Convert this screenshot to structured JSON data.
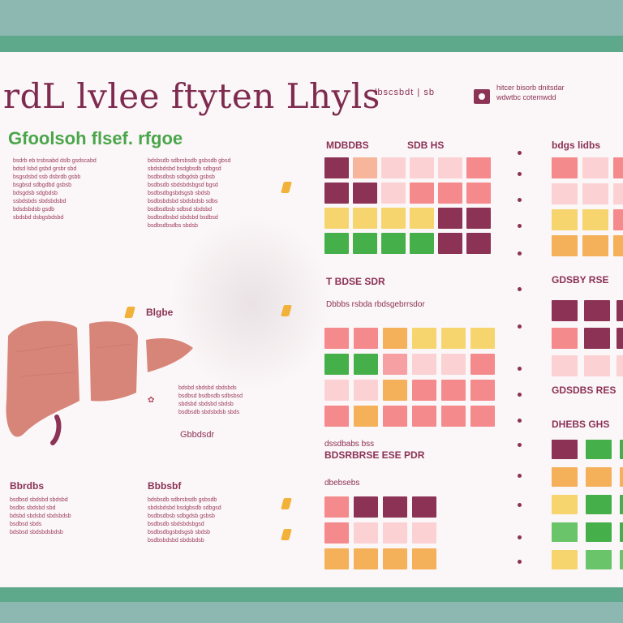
{
  "header": {
    "title": "rdL lvlee ftyten Lhyls",
    "title_meta": "lbscsbdt | sb",
    "header_meta": "hitcer bisorb dnitsdar\nwdwtbc cotemwdd"
  },
  "subtitle": "Gfoolsoh flsef. rfgoe",
  "labels": {
    "grid1_head": "MDBDBS",
    "grid1_head2": "SDB HS",
    "grid2_head": "T BDSE SDR",
    "grid2_sub": "Dbbbs rsbda rbdsgebrrsdor",
    "grid3_head": "dssdbabs bss",
    "grid3_sub": "BDSRBRSE ESE PDR",
    "grid4_head": "dbebsebs",
    "right_head1": "bdgs lidbs",
    "right_head2": "GDSBY RSE",
    "right_head3": "GDSDBS RES",
    "right_head4": "DHEBS GHS",
    "liver_label": "Blgbe",
    "mid_caption": "Gbbdsdr",
    "left_bottom_head": "Bbrdbs",
    "mid_bottom_head": "Bbbsbf"
  },
  "text_blocks": {
    "col1": "bsdrb eb trsbsabd dslb gsdscabd\nbdsd lsbd gsbd grsbr sbd\nbsgsdsbd ssb dsbrdb gsbb\nbsgbsd sdbgdbd gsbsb\nbdsgdsb sdgbdsb\nssbdsbds sbdsbdsbd\nbdsdsbdsb gsdb\nsbdsbd dsbgsbdsbd",
    "col2": "bdsbsdb sdbrsbsdb gsbsdb gbsd\nsbdsbdsbd bsdgbsdb sdbgsd\nbsdbsdbsb sdbgdsb gsbsb\nbsdbsdb sbdsbdsbgsd bgsd\nbsdbsdbgsbdsgsb sbdsb\nbsdbsbdsbd sbdsbdsb sdbs\nbsdbsdbsb sdbsd sbdsbd\nbsdbsdbsbd sbdsbd bsdbsd\nbsdbsdbsdbs sbdsb",
    "col3": "bdsbd sbdsbd sbdsbds\nbsdbsd bsdbsdb sdbsbsd\nsbdsbd sbdsbd sbdsb\nbsdbsdb sbdsbdsb sbds",
    "col4": "bsdbsd sbdsbd sbdsbd\nbsdbs sbdsbd sbd\nbdsbd sbdsbd sbdsbdsb\nbsdbsd sbds\nbdsbsd sbdsbdsbdsb",
    "col5": "bdsbsdb sdbrsbsdb gsbsdb\nsbdsbdsbd bsdgbsdb sdbgsd\nbsdbsdbsb sdbgdsb gsbsb\nbsdbsdb sbdsbdsbgsd\nbsdbsdbgsbdsgsb sbdsb\nbsdbsbdsbd sbdsbdsb"
  },
  "colors": {
    "maroon": "#8b3255",
    "pink": "#f6a0a3",
    "light_pink": "#fcd1d3",
    "salmon": "#f58a8c",
    "peach": "#f7b59b",
    "yellow": "#f6d56f",
    "orange": "#f5b05a",
    "green": "#45b04a",
    "light_green": "#69c46a",
    "liver": "#d88579"
  },
  "grids": {
    "grid1": [
      [
        "maroon",
        "peach",
        "light_pink",
        "light_pink",
        "light_pink",
        "salmon"
      ],
      [
        "maroon",
        "maroon",
        "light_pink",
        "salmon",
        "salmon",
        "salmon"
      ],
      [
        "yellow",
        "yellow",
        "yellow",
        "yellow",
        "maroon",
        "maroon"
      ],
      [
        "green",
        "green",
        "green",
        "green",
        "maroon",
        "maroon"
      ]
    ],
    "grid2": [
      [
        "salmon",
        "salmon",
        "orange",
        "yellow",
        "yellow",
        "yellow"
      ],
      [
        "green",
        "green",
        "pink",
        "light_pink",
        "light_pink",
        "salmon"
      ],
      [
        "light_pink",
        "light_pink",
        "orange",
        "salmon",
        "salmon",
        "salmon"
      ],
      [
        "salmon",
        "orange",
        "salmon",
        "salmon",
        "salmon",
        "salmon"
      ]
    ],
    "grid3": [
      [
        "salmon",
        "maroon",
        "maroon",
        "maroon"
      ],
      [
        "salmon",
        "light_pink",
        "light_pink",
        "light_pink"
      ],
      [
        "orange",
        "orange",
        "orange",
        "orange"
      ]
    ],
    "right1": [
      [
        "salmon",
        "light_pink",
        "salmon"
      ],
      [
        "light_pink",
        "light_pink",
        "light_pink"
      ],
      [
        "yellow",
        "yellow",
        "salmon"
      ],
      [
        "orange",
        "orange",
        "orange"
      ]
    ],
    "right2": [
      [
        "maroon",
        "maroon",
        "maroon"
      ],
      [
        "salmon",
        "maroon",
        "maroon"
      ],
      [
        "light_pink",
        "light_pink",
        "light_pink"
      ]
    ],
    "right3": [
      [
        "maroon",
        "green",
        "green"
      ],
      [
        "orange",
        "orange",
        "orange"
      ],
      [
        "yellow",
        "green",
        "green"
      ],
      [
        "light_green",
        "green",
        "green"
      ],
      [
        "yellow",
        "light_green",
        "light_green"
      ]
    ]
  }
}
